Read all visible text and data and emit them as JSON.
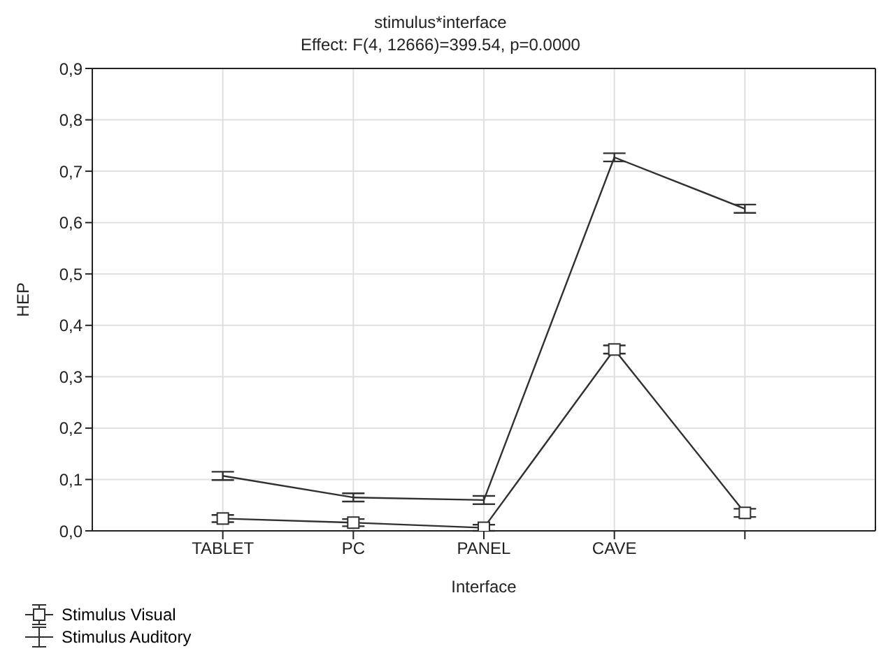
{
  "chart_data": {
    "type": "line",
    "title": "stimulus*interface",
    "subtitle": "Effect: F(4, 12666)=399.54, p=0.0000",
    "xlabel": "Interface",
    "ylabel": "HEP",
    "categories": [
      "TABLET",
      "PC",
      "PANEL",
      "CAVE",
      null
    ],
    "series": [
      {
        "name": "Stimulus Visual",
        "color": "#303030",
        "marker": "square",
        "values": [
          0.024,
          0.016,
          0.006,
          0.353,
          0.035
        ],
        "errors": [
          0.007,
          0.007,
          0.006,
          0.008,
          0.008
        ]
      },
      {
        "name": "Stimulus Auditory",
        "color": "#303030",
        "marker": "none",
        "values": [
          0.107,
          0.065,
          0.06,
          0.727,
          0.627
        ],
        "errors": [
          0.008,
          0.008,
          0.008,
          0.008,
          0.008
        ]
      }
    ],
    "ylim": [
      0,
      0.9
    ],
    "yticks": [
      {
        "value": 0,
        "label": "0,0"
      },
      {
        "value": 0.1,
        "label": "0,1"
      },
      {
        "value": 0.2,
        "label": "0,2"
      },
      {
        "value": 0.3,
        "label": "0,3"
      },
      {
        "value": 0.4,
        "label": "0,4"
      },
      {
        "value": 0.5,
        "label": "0,5"
      },
      {
        "value": 0.6,
        "label": "0,6"
      },
      {
        "value": 0.7,
        "label": "0,7"
      },
      {
        "value": 0.8,
        "label": "0,8"
      },
      {
        "value": 0.9,
        "label": "0,9"
      }
    ],
    "grid": true,
    "legend": "bottom left",
    "line_style": "solid"
  }
}
